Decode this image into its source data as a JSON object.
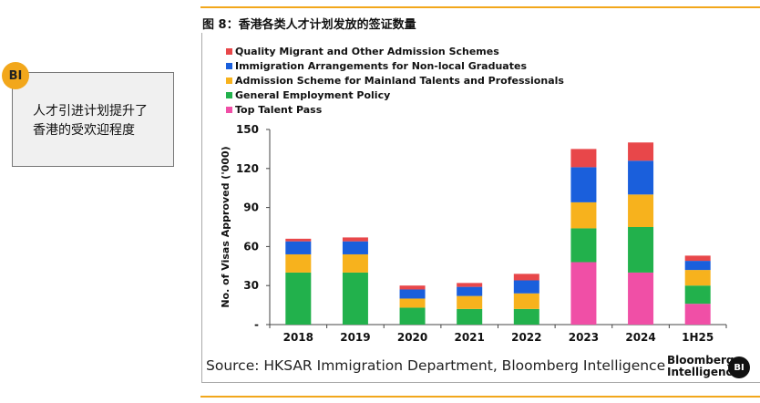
{
  "callout": {
    "badge": "BI",
    "line1": "人才引进计划提升了",
    "line2": "香港的受欢迎程度"
  },
  "figure_title": "图 8：香港各类人才计划发放的签证数量",
  "source": "Source: HKSAR Immigration Department, Bloomberg Intelligence",
  "brand": {
    "line1": "Bloomberg",
    "line2": "Intelligence",
    "badge": "BI"
  },
  "colors": {
    "accent_rule": "#f2a71b",
    "quality_migrant": "#e8474a",
    "non_local_graduates": "#1a5fdc",
    "mainland_talents": "#f7b21d",
    "general_employment": "#22b14c",
    "top_talent": "#f04fa6"
  },
  "chart_data": {
    "type": "bar",
    "stacked": true,
    "categories": [
      "2018",
      "2019",
      "2020",
      "2021",
      "2022",
      "2023",
      "2024",
      "1H25"
    ],
    "ylabel": "No. of Visas Approved ('000)",
    "xlabel": "",
    "ylim": [
      0,
      150
    ],
    "yticks": [
      0,
      30,
      60,
      90,
      120,
      150
    ],
    "ytick_labels": [
      "-",
      "30",
      "60",
      "90",
      "120",
      "150"
    ],
    "legend_position": "top-left",
    "series": [
      {
        "name": "Top Talent Pass",
        "color": "#f04fa6",
        "values": [
          0,
          0,
          0,
          0,
          0,
          48,
          40,
          16
        ]
      },
      {
        "name": "General Employment Policy",
        "color": "#22b14c",
        "values": [
          40,
          40,
          13,
          12,
          12,
          26,
          35,
          14
        ]
      },
      {
        "name": "Admission Scheme for Mainland Talents and Professionals",
        "color": "#f7b21d",
        "values": [
          14,
          14,
          7,
          10,
          12,
          20,
          25,
          12
        ]
      },
      {
        "name": "Immigration Arrangements for Non-local Graduates",
        "color": "#1a5fdc",
        "values": [
          10,
          10,
          7,
          7,
          10,
          27,
          26,
          7
        ]
      },
      {
        "name": "Quality Migrant and Other Admission Schemes",
        "color": "#e8474a",
        "values": [
          2,
          3,
          3,
          3,
          5,
          14,
          14,
          4
        ]
      }
    ],
    "legend_order": [
      "Quality Migrant and Other Admission Schemes",
      "Immigration Arrangements for Non-local Graduates",
      "Admission Scheme for Mainland Talents and Professionals",
      "General Employment Policy",
      "Top Talent Pass"
    ]
  }
}
